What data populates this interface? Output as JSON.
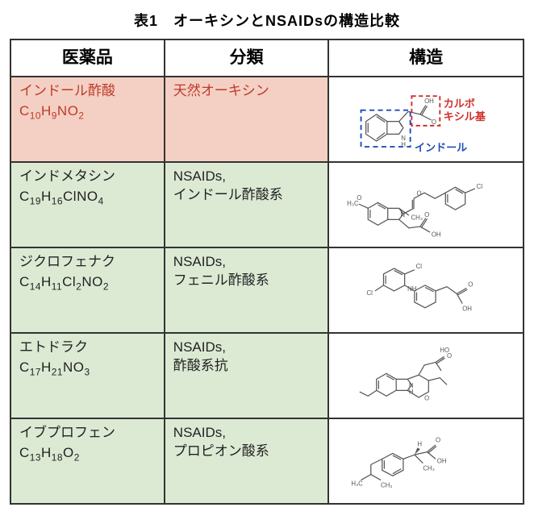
{
  "title": "表1　オーキシンとNSAIDsの構造比較",
  "headers": {
    "col1": "医薬品",
    "col2": "分類",
    "col3": "構造"
  },
  "colors": {
    "auxin_bg": "#f4d0c4",
    "auxin_fg": "#c0392b",
    "nsaid_bg": "#dcead4",
    "nsaid_fg": "#222222",
    "border": "#333333",
    "annot_red": "#d0312d",
    "annot_blue": "#1e4db7",
    "structure_line": "#555555",
    "structure_text": "#555555"
  },
  "annotations": {
    "carboxyl_label_l1": "カルボ",
    "carboxyl_label_l2": "キシル基",
    "indole_label": "インドール"
  },
  "rows": [
    {
      "kind": "auxin",
      "name": "インドール酢酸",
      "formula_html": "C<sub>10</sub>H<sub>9</sub>NO<sub>2</sub>",
      "classification": "天然オーキシン",
      "struct_key": "iaa"
    },
    {
      "kind": "nsaid",
      "name": "インドメタシン",
      "formula_html": "C<sub>19</sub>H<sub>16</sub>ClNO<sub>4</sub>",
      "classification": "NSAIDs,\nインドール酢酸系",
      "struct_key": "indomethacin"
    },
    {
      "kind": "nsaid",
      "name": "ジクロフェナク",
      "formula_html": "C<sub>14</sub>H<sub>11</sub>Cl<sub>2</sub>NO<sub>2</sub>",
      "classification": "NSAIDs,\nフェニル酢酸系",
      "struct_key": "diclofenac"
    },
    {
      "kind": "nsaid",
      "name": "エトドラク",
      "formula_html": "C<sub>17</sub>H<sub>21</sub>NO<sub>3</sub>",
      "classification": "NSAIDs,\n酢酸系抗",
      "struct_key": "etodolac"
    },
    {
      "kind": "nsaid",
      "name": "イブプロフェン",
      "formula_html": "C<sub>13</sub>H<sub>18</sub>O<sub>2</sub>",
      "classification": "NSAIDs,\nプロピオン酸系",
      "struct_key": "ibuprofen"
    }
  ],
  "structures": {
    "generic_viewbox": "0 0 240 110",
    "stroke_width": 1.4,
    "label_fontsize": 9
  }
}
